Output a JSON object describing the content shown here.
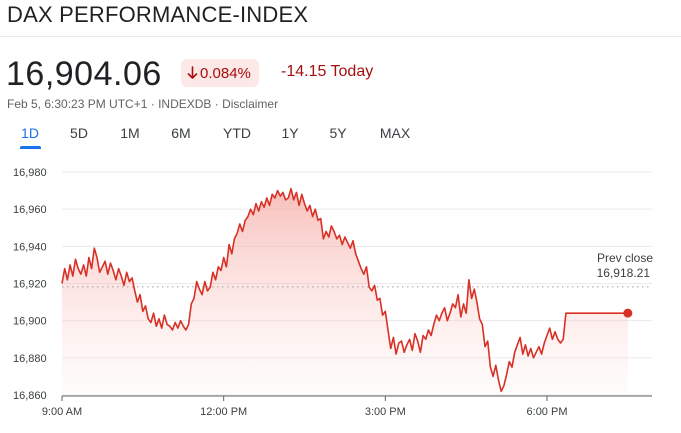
{
  "header": {
    "title": "DAX PERFORMANCE-INDEX",
    "price": "16,904.06",
    "change_percent": "0.084%",
    "change_abs": "-14.15 Today",
    "direction_icon": "down-arrow-icon",
    "meta_time": "Feb 5, 6:30:23 PM UTC+1",
    "meta_sep": " · ",
    "meta_exchange": "INDEXDB",
    "meta_disclaimer": "Disclaimer"
  },
  "tabs": [
    "1D",
    "5D",
    "1M",
    "6M",
    "YTD",
    "1Y",
    "5Y",
    "MAX"
  ],
  "active_tab": "1D",
  "colors": {
    "line": "#d93025",
    "negative": "#a50e0e",
    "badge_bg": "#fce8e6",
    "accent": "#1a73e8"
  },
  "chart_data": {
    "type": "area",
    "title": "",
    "xlabel": "",
    "ylabel": "",
    "x_ticks": [
      "9:00 AM",
      "12:00 PM",
      "3:00 PM",
      "6:00 PM"
    ],
    "y_ticks": [
      "16,980",
      "16,960",
      "16,940",
      "16,920",
      "16,900",
      "16,880",
      "16,860"
    ],
    "ylim": [
      16860,
      16990
    ],
    "prev_close": {
      "label": "Prev close",
      "value": 16918.21,
      "value_label": "16,918.21"
    },
    "series": [
      {
        "x_minutes_since_9am": [
          0,
          3,
          6,
          9,
          12,
          15,
          18,
          21,
          24,
          27,
          30,
          33,
          36,
          39,
          42,
          45,
          48,
          51,
          54,
          57,
          60,
          63,
          66,
          69,
          72,
          75,
          78,
          81,
          84,
          87,
          90,
          93,
          96,
          99,
          102,
          105,
          108,
          111,
          114,
          117,
          120,
          123,
          126,
          129,
          132,
          135,
          138,
          141,
          144,
          147,
          150,
          153,
          156,
          159,
          162,
          165,
          168,
          171,
          174,
          177,
          180,
          183,
          186,
          189,
          192,
          195,
          198,
          201,
          204,
          207,
          210,
          213,
          216,
          219,
          222,
          225,
          228,
          231,
          234,
          237,
          240,
          243,
          246,
          249,
          252,
          255,
          258,
          261,
          264,
          267,
          270,
          273,
          276,
          279,
          282,
          285,
          288,
          291,
          294,
          297,
          300,
          303,
          306,
          309,
          312,
          315,
          318,
          321,
          324,
          327,
          330,
          333,
          336,
          339,
          342,
          345,
          348,
          351,
          354,
          357,
          360,
          363,
          366,
          369,
          372,
          375,
          378,
          381,
          384,
          387,
          390,
          393,
          396,
          399,
          402,
          405,
          408,
          411,
          414,
          417,
          420,
          423,
          426,
          429,
          432,
          435,
          438,
          441,
          444,
          447,
          450,
          453,
          456,
          459,
          462,
          465,
          468,
          471,
          474,
          477,
          480,
          483,
          486,
          489,
          492,
          495,
          498,
          501,
          504,
          507,
          510,
          513,
          516,
          519,
          522,
          525,
          528,
          531,
          534,
          537,
          540,
          543,
          546,
          549,
          552,
          555,
          558,
          561,
          564,
          567,
          570,
          573,
          576,
          579,
          582,
          585,
          588,
          591,
          594,
          597,
          600,
          603,
          606,
          609,
          612,
          615,
          618,
          621,
          624,
          627,
          630
        ],
        "values": [
          16920,
          16928,
          16922,
          16930,
          16924,
          16933,
          16928,
          16925,
          16930,
          16924,
          16934,
          16928,
          16939,
          16934,
          16926,
          16929,
          16932,
          16925,
          16931,
          16927,
          16922,
          16928,
          16924,
          16919,
          16926,
          16921,
          16923,
          16916,
          16910,
          16914,
          16905,
          16908,
          16901,
          16899,
          16904,
          16897,
          16901,
          16896,
          16903,
          16898,
          16897,
          16895,
          16899,
          16896,
          16900,
          16897,
          16895,
          16898,
          16909,
          16912,
          16921,
          16917,
          16914,
          16921,
          16916,
          16918,
          16926,
          16922,
          16929,
          16927,
          16934,
          16929,
          16941,
          16936,
          16944,
          16947,
          16952,
          16948,
          16954,
          16956,
          16960,
          16957,
          16963,
          16959,
          16964,
          16961,
          16966,
          16962,
          16968,
          16966,
          16970,
          16967,
          16969,
          16965,
          16966,
          16971,
          16965,
          16969,
          16962,
          16968,
          16963,
          16959,
          16962,
          16956,
          16960,
          16954,
          16955,
          16944,
          16948,
          16945,
          16951,
          16948,
          16944,
          16946,
          16941,
          16945,
          16942,
          16939,
          16943,
          16936,
          16932,
          16928,
          16925,
          16929,
          16918,
          16916,
          16919,
          16911,
          16912,
          16903,
          16905,
          16895,
          16885,
          16891,
          16882,
          16888,
          16889,
          16883,
          16887,
          16890,
          16884,
          16893,
          16889,
          16883,
          16892,
          16890,
          16895,
          16892,
          16898,
          16903,
          16900,
          16904,
          16907,
          16900,
          16904,
          16909,
          16907,
          16914,
          16902,
          16909,
          16904,
          16922,
          16912,
          16917,
          16910,
          16901,
          16898,
          16886,
          16889,
          16875,
          16870,
          16876,
          16868,
          16862,
          16865,
          16871,
          16878,
          16875,
          16883,
          16887,
          16891,
          16882,
          16887,
          16881,
          16885,
          16880,
          16883,
          16886,
          16882,
          16888,
          16892,
          16896,
          16890,
          16894,
          16890,
          16888,
          16890,
          16904,
          16904,
          16904,
          16904,
          16904,
          16904,
          16904,
          16904,
          16904,
          16904,
          16904,
          16904,
          16904,
          16904,
          16904,
          16904,
          16904,
          16904,
          16904,
          16904,
          16904,
          16904,
          16904,
          16904.06
        ]
      }
    ],
    "grid": true,
    "last_point_marker": true
  }
}
